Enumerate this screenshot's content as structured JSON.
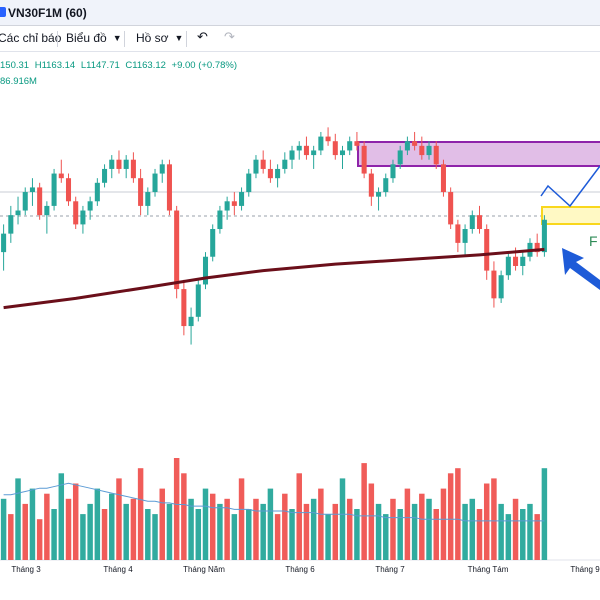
{
  "window": {
    "title": "VN30F1M (60)"
  },
  "toolbar": {
    "indicators_label": "Các chỉ báo",
    "chart_label": "Biểu đồ",
    "profile_label": "Hồ sơ",
    "undo_icon": "undo-icon",
    "redo_icon": "redo-icon"
  },
  "legend": {
    "open": "150.31",
    "high": "H1163.14",
    "low": "L1147.71",
    "close": "C1163.12",
    "change": "+9.00 (+0.78%)",
    "volume": "86.916M"
  },
  "colors": {
    "up": "#26a69a",
    "down": "#ef5350",
    "ma": "#6b0f1a",
    "zone_fill": "#e1bee7",
    "zone_stroke": "#8e24aa",
    "support_fill": "#fff9c4",
    "support_stroke": "#f9d71c",
    "arrow": "#1e5bd8",
    "projection": "#1e5bd8",
    "vol_ma": "#5b9bd5"
  },
  "chart_data": {
    "type": "candlestick",
    "x_tick_labels": [
      "Tháng 3",
      "Tháng 4",
      "Tháng Năm",
      "Tháng 6",
      "Tháng 7",
      "Tháng Tám",
      "Tháng 9"
    ],
    "annotation_text": "F",
    "price_series": [
      [
        1060,
        1090,
        1040,
        1080
      ],
      [
        1080,
        1110,
        1070,
        1100
      ],
      [
        1100,
        1120,
        1090,
        1105
      ],
      [
        1105,
        1130,
        1100,
        1125
      ],
      [
        1125,
        1140,
        1110,
        1130
      ],
      [
        1130,
        1135,
        1095,
        1100
      ],
      [
        1100,
        1115,
        1080,
        1110
      ],
      [
        1110,
        1150,
        1105,
        1145
      ],
      [
        1145,
        1160,
        1135,
        1140
      ],
      [
        1140,
        1145,
        1110,
        1115
      ],
      [
        1115,
        1120,
        1085,
        1090
      ],
      [
        1090,
        1110,
        1080,
        1105
      ],
      [
        1105,
        1120,
        1095,
        1115
      ],
      [
        1115,
        1140,
        1110,
        1135
      ],
      [
        1135,
        1155,
        1130,
        1150
      ],
      [
        1150,
        1165,
        1140,
        1160
      ],
      [
        1160,
        1170,
        1145,
        1150
      ],
      [
        1150,
        1165,
        1140,
        1160
      ],
      [
        1160,
        1168,
        1135,
        1140
      ],
      [
        1140,
        1150,
        1100,
        1110
      ],
      [
        1110,
        1130,
        1100,
        1125
      ],
      [
        1125,
        1150,
        1120,
        1145
      ],
      [
        1145,
        1160,
        1135,
        1155
      ],
      [
        1155,
        1160,
        1100,
        1105
      ],
      [
        1105,
        1110,
        1010,
        1020
      ],
      [
        1020,
        1030,
        970,
        980
      ],
      [
        980,
        1000,
        960,
        990
      ],
      [
        990,
        1030,
        985,
        1025
      ],
      [
        1025,
        1060,
        1020,
        1055
      ],
      [
        1055,
        1090,
        1050,
        1085
      ],
      [
        1085,
        1110,
        1080,
        1105
      ],
      [
        1105,
        1120,
        1095,
        1115
      ],
      [
        1115,
        1125,
        1100,
        1110
      ],
      [
        1110,
        1130,
        1105,
        1125
      ],
      [
        1125,
        1150,
        1120,
        1145
      ],
      [
        1145,
        1165,
        1140,
        1160
      ],
      [
        1160,
        1170,
        1145,
        1150
      ],
      [
        1150,
        1160,
        1135,
        1140
      ],
      [
        1140,
        1155,
        1130,
        1150
      ],
      [
        1150,
        1168,
        1145,
        1160
      ],
      [
        1160,
        1175,
        1150,
        1170
      ],
      [
        1170,
        1180,
        1160,
        1175
      ],
      [
        1175,
        1185,
        1160,
        1165
      ],
      [
        1165,
        1175,
        1150,
        1170
      ],
      [
        1170,
        1190,
        1165,
        1185
      ],
      [
        1185,
        1195,
        1175,
        1180
      ],
      [
        1180,
        1188,
        1160,
        1165
      ],
      [
        1165,
        1175,
        1150,
        1170
      ],
      [
        1170,
        1185,
        1165,
        1180
      ],
      [
        1180,
        1190,
        1170,
        1175
      ],
      [
        1175,
        1180,
        1140,
        1145
      ],
      [
        1145,
        1150,
        1110,
        1120
      ],
      [
        1120,
        1130,
        1105,
        1125
      ],
      [
        1125,
        1145,
        1120,
        1140
      ],
      [
        1140,
        1160,
        1135,
        1155
      ],
      [
        1155,
        1175,
        1150,
        1170
      ],
      [
        1170,
        1185,
        1165,
        1180
      ],
      [
        1180,
        1190,
        1170,
        1175
      ],
      [
        1175,
        1185,
        1160,
        1165
      ],
      [
        1165,
        1180,
        1160,
        1175
      ],
      [
        1175,
        1180,
        1150,
        1155
      ],
      [
        1155,
        1160,
        1120,
        1125
      ],
      [
        1125,
        1130,
        1085,
        1090
      ],
      [
        1090,
        1095,
        1060,
        1070
      ],
      [
        1070,
        1090,
        1055,
        1085
      ],
      [
        1085,
        1105,
        1080,
        1100
      ],
      [
        1100,
        1110,
        1080,
        1085
      ],
      [
        1085,
        1090,
        1030,
        1040
      ],
      [
        1040,
        1050,
        1000,
        1010
      ],
      [
        1010,
        1040,
        1005,
        1035
      ],
      [
        1035,
        1060,
        1030,
        1055
      ],
      [
        1055,
        1065,
        1040,
        1045
      ],
      [
        1045,
        1060,
        1035,
        1055
      ],
      [
        1055,
        1075,
        1050,
        1070
      ],
      [
        1070,
        1080,
        1055,
        1060
      ],
      [
        1060,
        1100,
        1055,
        1095
      ]
    ],
    "ma_line": [
      [
        0,
        1000
      ],
      [
        10,
        1010
      ],
      [
        20,
        1022
      ],
      [
        28,
        1032
      ],
      [
        36,
        1040
      ],
      [
        46,
        1047
      ],
      [
        56,
        1052
      ],
      [
        66,
        1057
      ],
      [
        75,
        1063
      ]
    ],
    "volume_series": [
      [
        60,
        1
      ],
      [
        45,
        0
      ],
      [
        80,
        1
      ],
      [
        55,
        0
      ],
      [
        70,
        1
      ],
      [
        40,
        0
      ],
      [
        65,
        0
      ],
      [
        50,
        1
      ],
      [
        85,
        1
      ],
      [
        60,
        0
      ],
      [
        75,
        0
      ],
      [
        45,
        1
      ],
      [
        55,
        1
      ],
      [
        70,
        1
      ],
      [
        50,
        0
      ],
      [
        65,
        1
      ],
      [
        80,
        0
      ],
      [
        55,
        1
      ],
      [
        60,
        0
      ],
      [
        90,
        0
      ],
      [
        50,
        1
      ],
      [
        45,
        1
      ],
      [
        70,
        0
      ],
      [
        55,
        1
      ],
      [
        100,
        0
      ],
      [
        85,
        0
      ],
      [
        60,
        1
      ],
      [
        50,
        1
      ],
      [
        70,
        1
      ],
      [
        65,
        0
      ],
      [
        55,
        1
      ],
      [
        60,
        0
      ],
      [
        45,
        1
      ],
      [
        80,
        0
      ],
      [
        50,
        1
      ],
      [
        60,
        0
      ],
      [
        55,
        1
      ],
      [
        70,
        1
      ],
      [
        45,
        0
      ],
      [
        65,
        0
      ],
      [
        50,
        1
      ],
      [
        85,
        0
      ],
      [
        55,
        0
      ],
      [
        60,
        1
      ],
      [
        70,
        0
      ],
      [
        45,
        1
      ],
      [
        55,
        0
      ],
      [
        80,
        1
      ],
      [
        60,
        0
      ],
      [
        50,
        1
      ],
      [
        95,
        0
      ],
      [
        75,
        0
      ],
      [
        55,
        1
      ],
      [
        45,
        1
      ],
      [
        60,
        0
      ],
      [
        50,
        1
      ],
      [
        70,
        0
      ],
      [
        55,
        1
      ],
      [
        65,
        0
      ],
      [
        60,
        1
      ],
      [
        50,
        0
      ],
      [
        70,
        0
      ],
      [
        85,
        0
      ],
      [
        90,
        0
      ],
      [
        55,
        1
      ],
      [
        60,
        1
      ],
      [
        50,
        0
      ],
      [
        75,
        0
      ],
      [
        80,
        0
      ],
      [
        55,
        1
      ],
      [
        45,
        1
      ],
      [
        60,
        0
      ],
      [
        50,
        1
      ],
      [
        55,
        1
      ],
      [
        45,
        0
      ],
      [
        90,
        1
      ]
    ],
    "vol_ma": [
      40,
      40,
      41,
      42,
      43,
      44,
      44,
      45,
      46,
      47,
      46,
      45,
      44,
      43,
      42,
      41,
      40,
      39,
      38,
      37,
      36,
      36,
      35,
      35,
      34,
      34,
      33,
      33,
      33,
      32,
      32,
      32,
      31,
      31,
      31,
      30,
      30,
      30,
      30,
      30,
      29,
      29,
      29,
      29,
      28,
      28,
      28,
      28,
      28,
      27,
      27,
      27,
      27,
      26,
      26,
      26,
      26,
      26,
      25,
      25,
      25,
      25,
      25,
      25,
      24,
      24,
      24,
      24,
      24,
      24,
      24,
      24,
      24,
      24,
      24,
      24
    ]
  }
}
